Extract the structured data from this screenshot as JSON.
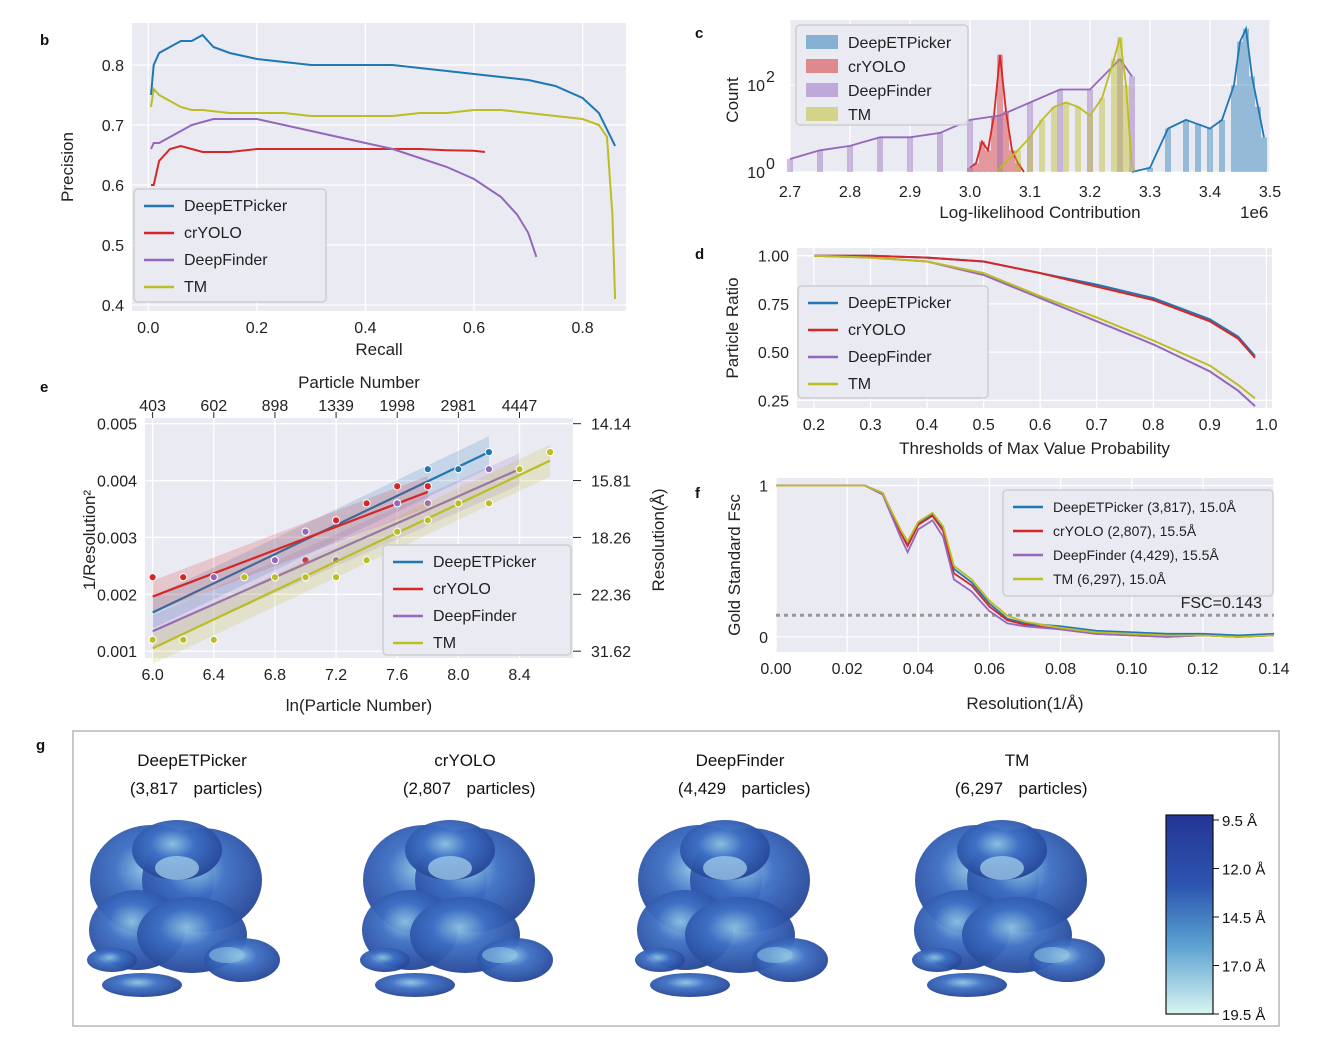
{
  "colors": {
    "DeepETPicker": "#1f77b4",
    "crYOLO": "#d62728",
    "DeepFinder": "#9467bd",
    "TM": "#bcbd22",
    "grid_bg": "#eaeaf2"
  },
  "chart_data": [
    {
      "panel": "b",
      "type": "line",
      "xlabel": "Recall",
      "ylabel": "Precision",
      "xlim": [
        -0.03,
        0.88
      ],
      "ylim": [
        0.39,
        0.87
      ],
      "xticks": [
        "0.0",
        "0.2",
        "0.4",
        "0.6",
        "0.8"
      ],
      "yticks": [
        "0.4",
        "0.5",
        "0.6",
        "0.7",
        "0.8"
      ],
      "series": [
        {
          "name": "DeepETPicker",
          "x": [
            0.005,
            0.01,
            0.02,
            0.04,
            0.06,
            0.08,
            0.1,
            0.12,
            0.15,
            0.2,
            0.25,
            0.3,
            0.35,
            0.4,
            0.45,
            0.5,
            0.55,
            0.6,
            0.65,
            0.7,
            0.75,
            0.8,
            0.83,
            0.86
          ],
          "y": [
            0.75,
            0.8,
            0.82,
            0.83,
            0.84,
            0.84,
            0.85,
            0.83,
            0.82,
            0.81,
            0.805,
            0.8,
            0.8,
            0.8,
            0.8,
            0.795,
            0.79,
            0.785,
            0.78,
            0.775,
            0.765,
            0.745,
            0.72,
            0.665
          ]
        },
        {
          "name": "crYOLO",
          "x": [
            0.005,
            0.01,
            0.02,
            0.04,
            0.06,
            0.08,
            0.1,
            0.15,
            0.2,
            0.25,
            0.3,
            0.35,
            0.4,
            0.45,
            0.5,
            0.55,
            0.6,
            0.62
          ],
          "y": [
            0.6,
            0.6,
            0.64,
            0.66,
            0.665,
            0.66,
            0.655,
            0.655,
            0.66,
            0.66,
            0.66,
            0.66,
            0.66,
            0.66,
            0.66,
            0.658,
            0.657,
            0.655
          ]
        },
        {
          "name": "DeepFinder",
          "x": [
            0.005,
            0.01,
            0.02,
            0.04,
            0.06,
            0.08,
            0.1,
            0.12,
            0.15,
            0.2,
            0.25,
            0.3,
            0.35,
            0.4,
            0.45,
            0.5,
            0.55,
            0.6,
            0.65,
            0.68,
            0.7,
            0.715
          ],
          "y": [
            0.66,
            0.67,
            0.67,
            0.68,
            0.69,
            0.7,
            0.705,
            0.71,
            0.71,
            0.71,
            0.7,
            0.69,
            0.68,
            0.67,
            0.66,
            0.645,
            0.63,
            0.61,
            0.58,
            0.55,
            0.52,
            0.48
          ]
        },
        {
          "name": "TM",
          "x": [
            0.005,
            0.01,
            0.02,
            0.04,
            0.06,
            0.08,
            0.1,
            0.15,
            0.2,
            0.25,
            0.3,
            0.35,
            0.4,
            0.45,
            0.5,
            0.55,
            0.6,
            0.65,
            0.7,
            0.75,
            0.8,
            0.83,
            0.845,
            0.855,
            0.86
          ],
          "y": [
            0.73,
            0.76,
            0.75,
            0.74,
            0.73,
            0.725,
            0.725,
            0.72,
            0.72,
            0.72,
            0.715,
            0.715,
            0.715,
            0.715,
            0.72,
            0.72,
            0.725,
            0.725,
            0.72,
            0.715,
            0.71,
            0.7,
            0.68,
            0.55,
            0.41
          ]
        }
      ]
    },
    {
      "panel": "c",
      "type": "histogram",
      "xlabel": "Log-likelihood Contribution",
      "ylabel": "Count",
      "xlim": [
        2.7,
        3.5
      ],
      "x_scale_label": "1e6",
      "xticks": [
        "2.7",
        "2.8",
        "2.9",
        "3.0",
        "3.1",
        "3.2",
        "3.3",
        "3.4",
        "3.5"
      ],
      "yticks": [
        "10",
        "10"
      ],
      "ytick_exponents": [
        "0",
        "2"
      ],
      "series": [
        {
          "name": "DeepETPicker",
          "x": [
            3.27,
            3.3,
            3.33,
            3.36,
            3.38,
            3.4,
            3.42,
            3.44,
            3.45,
            3.46,
            3.47,
            3.48,
            3.49
          ],
          "y_log10": [
            0.0,
            0.1,
            1.0,
            1.2,
            1.1,
            1.0,
            1.2,
            2.0,
            3.0,
            3.3,
            2.2,
            1.5,
            0.8
          ]
        },
        {
          "name": "crYOLO",
          "x": [
            3.0,
            3.01,
            3.02,
            3.03,
            3.04,
            3.05,
            3.06,
            3.07,
            3.08,
            3.09
          ],
          "y_log10": [
            0.1,
            0.2,
            0.7,
            0.5,
            1.3,
            2.7,
            1.4,
            0.5,
            0.2,
            0.0
          ]
        },
        {
          "name": "DeepFinder",
          "x": [
            2.7,
            2.75,
            2.8,
            2.85,
            2.9,
            2.95,
            3.0,
            3.05,
            3.1,
            3.15,
            3.2,
            3.25,
            3.27
          ],
          "y_log10": [
            0.3,
            0.5,
            0.6,
            0.8,
            0.8,
            0.9,
            1.2,
            1.3,
            1.6,
            1.9,
            1.9,
            2.6,
            2.2
          ]
        },
        {
          "name": "TM",
          "x": [
            3.05,
            3.08,
            3.1,
            3.12,
            3.14,
            3.16,
            3.18,
            3.2,
            3.22,
            3.24,
            3.25,
            3.26,
            3.27
          ],
          "y_log10": [
            0.1,
            0.5,
            0.8,
            1.2,
            1.5,
            1.6,
            1.5,
            1.3,
            1.7,
            2.6,
            3.1,
            2.0,
            0.1
          ]
        }
      ]
    },
    {
      "panel": "d",
      "type": "line",
      "xlabel": "Thresholds of Max Value Probability",
      "ylabel": "Particle Ratio",
      "xlim": [
        0.17,
        1.01
      ],
      "ylim": [
        0.21,
        1.04
      ],
      "xticks": [
        "0.2",
        "0.3",
        "0.4",
        "0.5",
        "0.6",
        "0.7",
        "0.8",
        "0.9",
        "1.0"
      ],
      "yticks": [
        "0.25",
        "0.50",
        "0.75",
        "1.00"
      ],
      "series": [
        {
          "name": "DeepETPicker",
          "x": [
            0.2,
            0.3,
            0.4,
            0.5,
            0.6,
            0.7,
            0.8,
            0.9,
            0.95,
            0.98
          ],
          "y": [
            1.0,
            1.0,
            0.99,
            0.97,
            0.91,
            0.85,
            0.78,
            0.67,
            0.58,
            0.48
          ]
        },
        {
          "name": "crYOLO",
          "x": [
            0.2,
            0.3,
            0.4,
            0.5,
            0.6,
            0.7,
            0.8,
            0.9,
            0.95,
            0.98
          ],
          "y": [
            1.0,
            1.0,
            0.99,
            0.97,
            0.91,
            0.84,
            0.77,
            0.66,
            0.57,
            0.47
          ]
        },
        {
          "name": "DeepFinder",
          "x": [
            0.2,
            0.3,
            0.4,
            0.5,
            0.6,
            0.7,
            0.8,
            0.9,
            0.95,
            0.98
          ],
          "y": [
            1.0,
            0.99,
            0.97,
            0.9,
            0.78,
            0.66,
            0.54,
            0.4,
            0.3,
            0.22
          ]
        },
        {
          "name": "TM",
          "x": [
            0.2,
            0.3,
            0.4,
            0.5,
            0.6,
            0.7,
            0.8,
            0.9,
            0.95,
            0.98
          ],
          "y": [
            1.0,
            0.99,
            0.97,
            0.91,
            0.79,
            0.68,
            0.56,
            0.43,
            0.33,
            0.26
          ]
        }
      ]
    },
    {
      "panel": "e",
      "type": "scatter",
      "xlabel": "ln(Particle Number)",
      "ylabel": "1/Resolution²",
      "top_xlabel": "Particle Number",
      "right_ylabel": "Resolution(Å)",
      "xlim": [
        5.95,
        8.75
      ],
      "ylim": [
        0.00088,
        0.0051
      ],
      "xticks": [
        "6.0",
        "6.4",
        "6.8",
        "7.2",
        "7.6",
        "8.0",
        "8.4"
      ],
      "yticks": [
        "0.001",
        "0.002",
        "0.003",
        "0.004",
        "0.005"
      ],
      "top_ticks": [
        "403",
        "602",
        "898",
        "1339",
        "1998",
        "2981",
        "4447"
      ],
      "right_ticks": [
        "14.14",
        "15.81",
        "18.26",
        "22.36",
        "31.62"
      ],
      "series": [
        {
          "name": "DeepETPicker",
          "x": [
            6.0,
            6.4,
            6.8,
            7.0,
            7.2,
            7.6,
            7.8,
            8.0,
            8.2
          ],
          "y": [
            0.0012,
            0.0023,
            0.0026,
            0.0031,
            0.0033,
            0.0036,
            0.0042,
            0.0042,
            0.0045
          ],
          "fit": [
            [
              6.0,
              0.00168
            ],
            [
              8.2,
              0.0045
            ]
          ]
        },
        {
          "name": "crYOLO",
          "x": [
            6.0,
            6.2,
            6.4,
            6.8,
            7.0,
            7.2,
            7.4,
            7.6,
            7.8
          ],
          "y": [
            0.0023,
            0.0023,
            0.0023,
            0.0026,
            0.0026,
            0.0033,
            0.0036,
            0.0039,
            0.0039
          ],
          "fit": [
            [
              6.0,
              0.00196
            ],
            [
              7.8,
              0.0038
            ]
          ]
        },
        {
          "name": "DeepFinder",
          "x": [
            6.0,
            6.4,
            6.8,
            7.0,
            7.2,
            7.6,
            7.8,
            8.2
          ],
          "y": [
            0.0012,
            0.0023,
            0.0026,
            0.0031,
            0.0026,
            0.0036,
            0.0036,
            0.0042
          ],
          "fit": [
            [
              6.0,
              0.00135
            ],
            [
              8.4,
              0.0042
            ]
          ]
        },
        {
          "name": "TM",
          "x": [
            6.0,
            6.2,
            6.4,
            6.6,
            6.8,
            7.0,
            7.2,
            7.4,
            7.6,
            7.8,
            8.0,
            8.2,
            8.4,
            8.6
          ],
          "y": [
            0.0012,
            0.0012,
            0.0012,
            0.0023,
            0.0023,
            0.0023,
            0.0023,
            0.0026,
            0.0031,
            0.0033,
            0.0036,
            0.0036,
            0.0042,
            0.0045
          ],
          "fit": [
            [
              6.0,
              0.00105
            ],
            [
              8.6,
              0.00435
            ]
          ]
        }
      ]
    },
    {
      "panel": "f",
      "type": "line",
      "xlabel": "Resolution(1/Å)",
      "ylabel": "Gold Standard Fsc",
      "xlim": [
        0.0,
        0.14
      ],
      "ylim": [
        -0.1,
        1.05
      ],
      "xticks": [
        "0.00",
        "0.02",
        "0.04",
        "0.06",
        "0.08",
        "0.10",
        "0.12",
        "0.14"
      ],
      "yticks": [
        "0",
        "1"
      ],
      "threshold": {
        "value": 0.143,
        "label": "FSC=0.143"
      },
      "series": [
        {
          "name": "DeepETPicker (3,817), 15.0Å",
          "x": [
            0.0,
            0.025,
            0.03,
            0.035,
            0.037,
            0.04,
            0.044,
            0.047,
            0.05,
            0.055,
            0.06,
            0.065,
            0.07,
            0.08,
            0.09,
            0.1,
            0.11,
            0.12,
            0.13,
            0.14
          ],
          "y": [
            1.0,
            1.0,
            0.95,
            0.7,
            0.62,
            0.75,
            0.81,
            0.72,
            0.45,
            0.36,
            0.22,
            0.12,
            0.09,
            0.07,
            0.04,
            0.03,
            0.02,
            0.02,
            0.01,
            0.02
          ]
        },
        {
          "name": "crYOLO (2,807), 15.5Å",
          "x": [
            0.0,
            0.025,
            0.03,
            0.035,
            0.037,
            0.04,
            0.044,
            0.047,
            0.05,
            0.055,
            0.06,
            0.065,
            0.07,
            0.08,
            0.09,
            0.1,
            0.11,
            0.12,
            0.13,
            0.14
          ],
          "y": [
            1.0,
            1.0,
            0.95,
            0.69,
            0.6,
            0.74,
            0.8,
            0.7,
            0.42,
            0.34,
            0.2,
            0.11,
            0.08,
            0.05,
            0.02,
            0.01,
            0.0,
            0.01,
            0.0,
            0.01
          ]
        },
        {
          "name": "DeepFinder (4,429), 15.5Å",
          "x": [
            0.0,
            0.025,
            0.03,
            0.035,
            0.037,
            0.04,
            0.044,
            0.047,
            0.05,
            0.055,
            0.06,
            0.065,
            0.07,
            0.08,
            0.09,
            0.1,
            0.11,
            0.12,
            0.13,
            0.14
          ],
          "y": [
            1.0,
            1.0,
            0.94,
            0.66,
            0.56,
            0.71,
            0.77,
            0.66,
            0.38,
            0.3,
            0.17,
            0.09,
            0.07,
            0.05,
            0.02,
            0.01,
            0.0,
            0.01,
            0.0,
            0.01
          ]
        },
        {
          "name": "TM (6,297), 15.0Å",
          "x": [
            0.0,
            0.025,
            0.03,
            0.035,
            0.037,
            0.04,
            0.044,
            0.047,
            0.05,
            0.055,
            0.06,
            0.065,
            0.07,
            0.08,
            0.09,
            0.1,
            0.11,
            0.12,
            0.13,
            0.14
          ],
          "y": [
            1.0,
            1.0,
            0.95,
            0.71,
            0.63,
            0.76,
            0.82,
            0.73,
            0.47,
            0.38,
            0.24,
            0.14,
            0.1,
            0.06,
            0.03,
            0.02,
            0.01,
            0.01,
            0.0,
            0.01
          ]
        }
      ]
    }
  ],
  "panel_g": {
    "label": "g",
    "maps": [
      {
        "title": "DeepETPicker",
        "count": "(3,817",
        "unit": "particles)"
      },
      {
        "title": "crYOLO",
        "count": "(2,807",
        "unit": "particles)"
      },
      {
        "title": "DeepFinder",
        "count": "(4,429",
        "unit": "particles)"
      },
      {
        "title": "TM",
        "count": "(6,297",
        "unit": "particles)"
      }
    ],
    "colorbar": {
      "labels": [
        "9.5 Å",
        "12.0 Å",
        "14.5 Å",
        "17.0 Å",
        "19.5 Å"
      ],
      "top_color": "#253494",
      "bottom_color": "#d9f5f1"
    }
  }
}
